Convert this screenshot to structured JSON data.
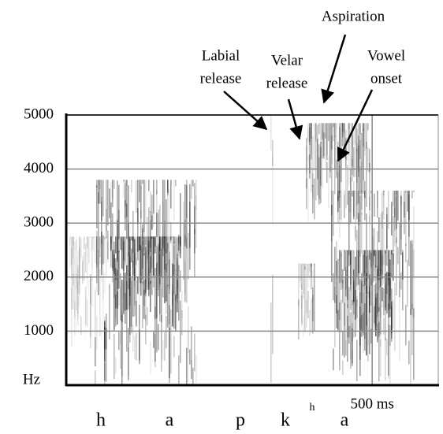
{
  "chart_data": {
    "type": "spectrogram",
    "ylabel": "Hz",
    "ylim": [
      0,
      5000
    ],
    "yticks": [
      1000,
      2000,
      3000,
      4000,
      5000
    ],
    "xlim": [
      0,
      608
    ],
    "xticks": [
      {
        "value": 500,
        "label": "500 ms"
      }
    ],
    "grid": true,
    "annotations": [
      {
        "lines": [
          "Labial",
          "release"
        ]
      },
      {
        "lines": [
          "Velar",
          "release"
        ]
      },
      {
        "lines": [
          "Aspiration"
        ]
      },
      {
        "lines": [
          "Vowel",
          "onset"
        ]
      }
    ],
    "segments": [
      "h",
      "a",
      "p",
      "k",
      "h",
      "a"
    ]
  }
}
